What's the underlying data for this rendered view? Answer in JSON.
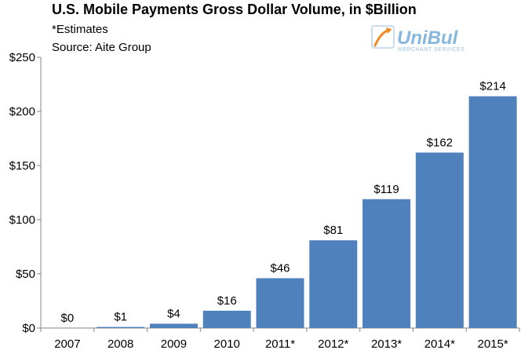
{
  "chart_data": {
    "type": "bar",
    "title": "U.S. Mobile Payments Gross Dollar Volume, in $Billion",
    "notes": [
      "*Estimates",
      "Source: Aite Group"
    ],
    "categories": [
      "2007",
      "2008",
      "2009",
      "2010",
      "2011*",
      "2012*",
      "2013*",
      "2014*",
      "2015*"
    ],
    "values": [
      0,
      1,
      4,
      16,
      46,
      81,
      119,
      162,
      214
    ],
    "value_labels": [
      "$0",
      "$1",
      "$4",
      "$16",
      "$46",
      "$81",
      "$119",
      "$162",
      "$214"
    ],
    "yticks": [
      0,
      50,
      100,
      150,
      200,
      250
    ],
    "ytick_labels": [
      "$0",
      "$50",
      "$100",
      "$150",
      "$200",
      "$250"
    ],
    "ylim": [
      0,
      250
    ],
    "xlabel": "",
    "ylabel": "",
    "grid": false,
    "bar_color": "#4f81bd"
  },
  "logo": {
    "name": "UniBul",
    "tagline": "MERCHANT SERVICES",
    "icon": "swoosh-arrow-icon",
    "color": "#86b7df"
  }
}
